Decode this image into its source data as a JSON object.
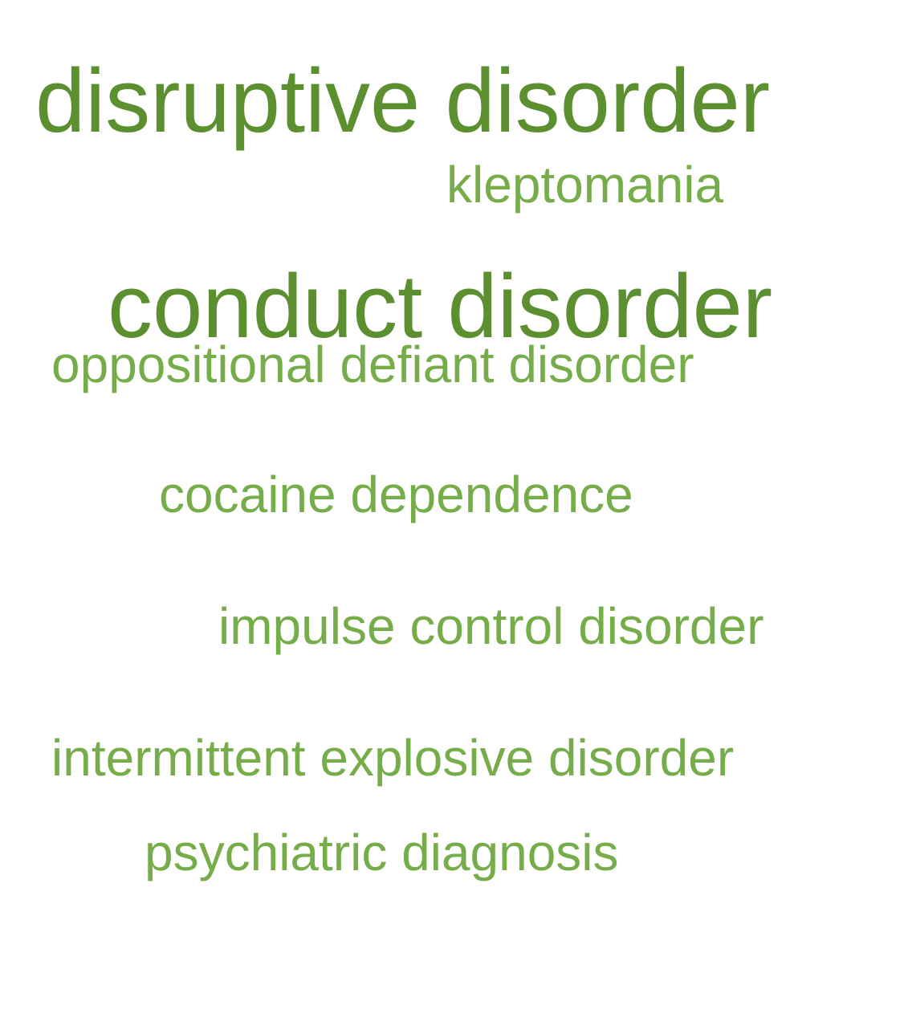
{
  "words": [
    {
      "text": "disruptive disorder",
      "weight": "large",
      "color": "#5b8f2f"
    },
    {
      "text": "kleptomania",
      "weight": "small",
      "color": "#76ad4a"
    },
    {
      "text": "conduct disorder",
      "weight": "large",
      "color": "#5b8f2f"
    },
    {
      "text": "oppositional defiant disorder",
      "weight": "small",
      "color": "#76ad4a"
    },
    {
      "text": "cocaine dependence",
      "weight": "small",
      "color": "#76ad4a"
    },
    {
      "text": "impulse control disorder",
      "weight": "small",
      "color": "#76ad4a"
    },
    {
      "text": "intermittent explosive disorder",
      "weight": "small",
      "color": "#76ad4a"
    },
    {
      "text": "psychiatric diagnosis",
      "weight": "small",
      "color": "#76ad4a"
    }
  ]
}
